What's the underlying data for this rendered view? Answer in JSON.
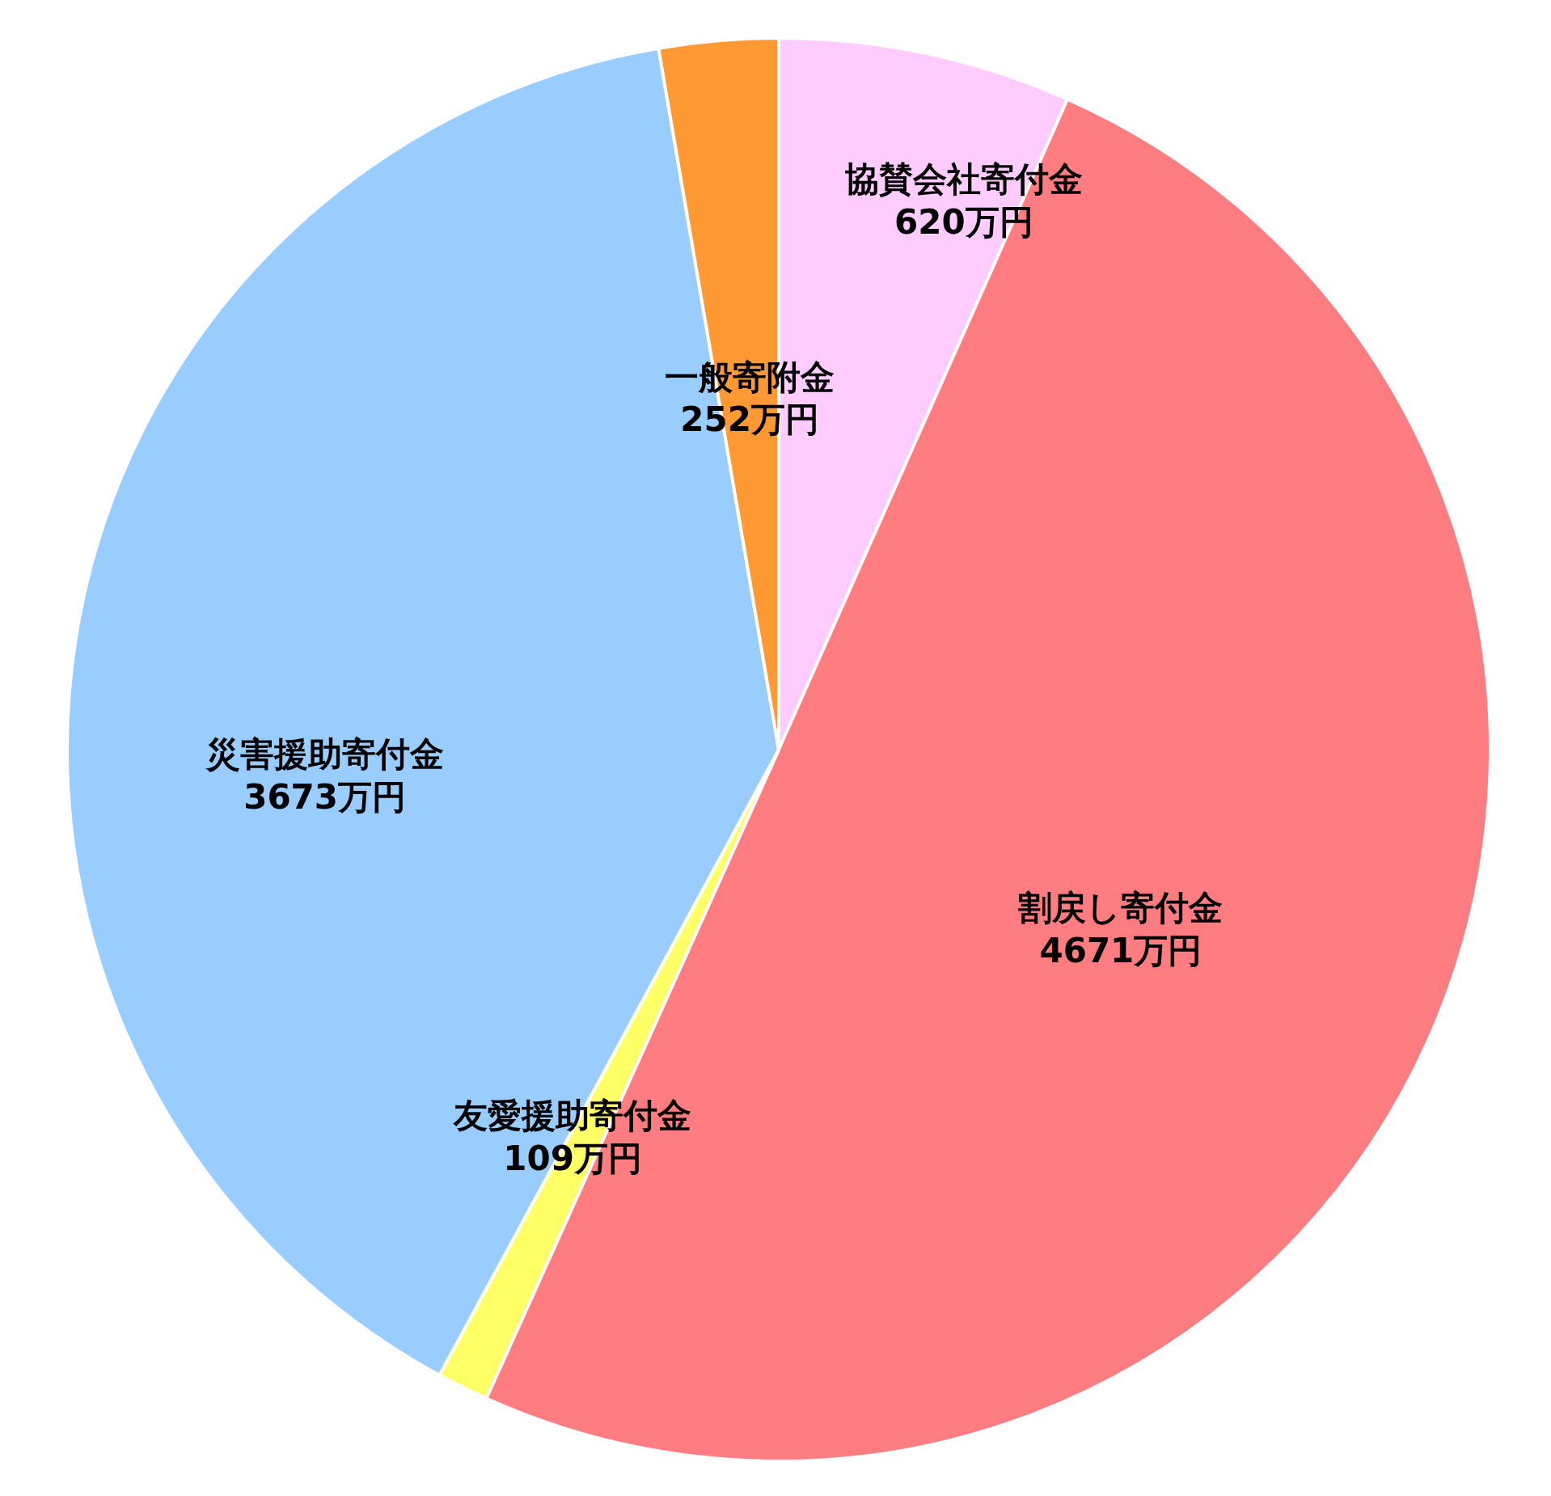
{
  "chart_data": {
    "type": "pie",
    "categories": [
      "協賛会社寄付金",
      "割戻し寄付金",
      "友愛援助寄付金",
      "災害援助寄付金",
      "一般寄附金"
    ],
    "values": [
      620,
      4671,
      109,
      3673,
      252
    ],
    "value_labels": [
      "620万円",
      "4671万円",
      "109万円",
      "3673万円",
      "252万円"
    ],
    "colors": [
      "#ffccff",
      "#ff7c80",
      "#ffff66",
      "#99ccff",
      "#ff9933"
    ],
    "legend": false
  }
}
